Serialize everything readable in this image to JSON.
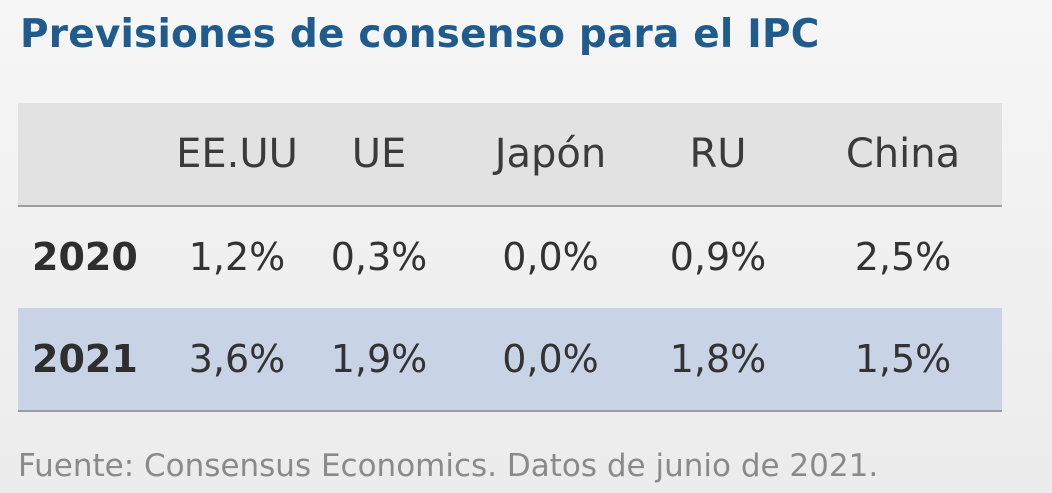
{
  "title": "Previsiones de consenso para el IPC",
  "table": {
    "columns": [
      "EE.UU",
      "UE",
      "Japón",
      "RU",
      "China"
    ],
    "rows": [
      {
        "year": "2020",
        "values": [
          "1,2%",
          "0,3%",
          "0,0%",
          "0,9%",
          "2,5%"
        ]
      },
      {
        "year": "2021",
        "values": [
          "3,6%",
          "1,9%",
          "0,0%",
          "1,8%",
          "1,5%"
        ]
      }
    ]
  },
  "source": "Fuente: Consensus Economics. Datos de junio de 2021.",
  "colors": {
    "title": "#1f5b8c",
    "header_background": "#e2e2e2",
    "highlight_row_background": "#c8d3e5",
    "divider": "#9c9c9c",
    "source_text": "#8a8a8a"
  }
}
